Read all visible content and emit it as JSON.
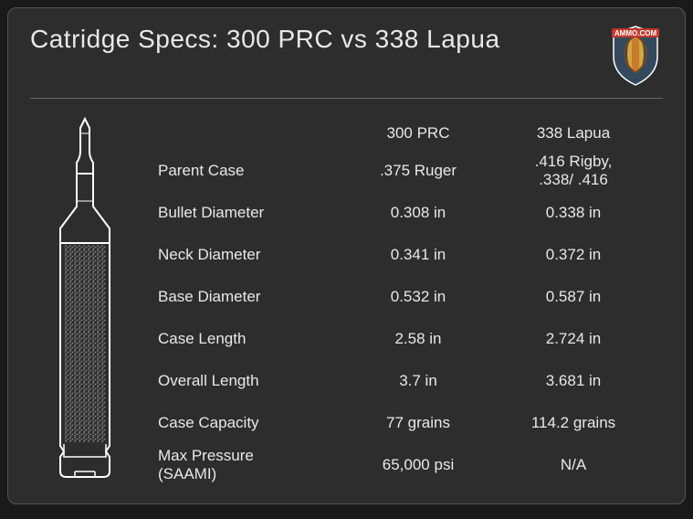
{
  "title": "Catridge Specs: 300 PRC vs 338 Lapua",
  "logo_text": "AMMO.COM",
  "columns": {
    "col1": "300 PRC",
    "col2": "338 Lapua"
  },
  "rows": [
    {
      "label": "Parent Case",
      "v1": ".375 Ruger",
      "v2": ".416 Rigby,\n.338/ .416"
    },
    {
      "label": "Bullet Diameter",
      "v1": "0.308 in",
      "v2": "0.338 in"
    },
    {
      "label": "Neck Diameter",
      "v1": "0.341 in",
      "v2": "0.372 in"
    },
    {
      "label": "Base Diameter",
      "v1": "0.532 in",
      "v2": "0.587 in"
    },
    {
      "label": "Case Length",
      "v1": "2.58 in",
      "v2": "2.724 in"
    },
    {
      "label": "Overall Length",
      "v1": "3.7 in",
      "v2": "3.681 in"
    },
    {
      "label": "Case Capacity",
      "v1": "77 grains",
      "v2": "114.2 grains"
    },
    {
      "label": "Max Pressure\n(SAAMI)",
      "v1": "65,000 psi",
      "v2": "N/A"
    }
  ],
  "styling": {
    "background": "#2d2d2d",
    "border_color": "#555555",
    "text_color": "#e8e8e8",
    "divider_color": "#666666",
    "logo_shield_color": "#34495e",
    "logo_banner_color": "#c0392b",
    "logo_bullet_color": "#d4a838",
    "cartridge_outline": "#ffffff",
    "title_fontsize": 28,
    "body_fontsize": 17
  }
}
